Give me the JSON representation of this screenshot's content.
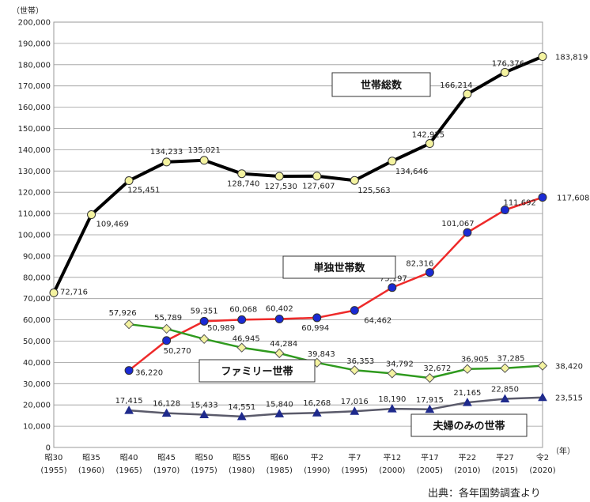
{
  "chart_data": {
    "type": "line",
    "y_unit_label": "（世帯）",
    "x_unit_label": "（年）",
    "ylim": [
      0,
      200000
    ],
    "ytick_step": 10000,
    "grid": true,
    "categories": [
      {
        "era": "昭30",
        "year": "(1955)"
      },
      {
        "era": "昭35",
        "year": "(1960)"
      },
      {
        "era": "昭40",
        "year": "(1965)"
      },
      {
        "era": "昭45",
        "year": "(1970)"
      },
      {
        "era": "昭50",
        "year": "(1975)"
      },
      {
        "era": "昭55",
        "year": "(1980)"
      },
      {
        "era": "昭60",
        "year": "(1985)"
      },
      {
        "era": "平2",
        "year": "(1990)"
      },
      {
        "era": "平7",
        "year": "(1995)"
      },
      {
        "era": "平12",
        "year": "(2000)"
      },
      {
        "era": "平17",
        "year": "(2005)"
      },
      {
        "era": "平22",
        "year": "(2010)"
      },
      {
        "era": "平27",
        "year": "(2015)"
      },
      {
        "era": "令2",
        "year": "(2020)"
      }
    ],
    "series": [
      {
        "name": "世帯総数",
        "line_color": "#000000",
        "marker_color": "#f4f3a0",
        "marker": "circle",
        "values": [
          72716,
          109469,
          125451,
          134233,
          135021,
          128740,
          127530,
          127607,
          125563,
          134646,
          142925,
          166214,
          176376,
          183819
        ]
      },
      {
        "name": "単独世帯数",
        "line_color": "#ee2a2a",
        "marker_color": "#1a2ad4",
        "marker": "circle",
        "values": [
          null,
          null,
          36220,
          50270,
          59351,
          60068,
          60402,
          60994,
          64462,
          75197,
          82316,
          101067,
          111692,
          117608
        ]
      },
      {
        "name": "ファミリー世帯",
        "line_color": "#2f9a1e",
        "marker_color": "#f4f3a0",
        "marker": "diamond",
        "values": [
          null,
          null,
          57926,
          55789,
          50989,
          46945,
          44284,
          39843,
          36353,
          34792,
          32672,
          36905,
          37285,
          38420
        ]
      },
      {
        "name": "夫婦のみの世帯",
        "line_color": "#5a5a6a",
        "marker_color": "#1f2a8c",
        "marker": "triangle",
        "values": [
          null,
          null,
          17415,
          16128,
          15433,
          14551,
          15840,
          16268,
          17016,
          18190,
          17915,
          21165,
          22850,
          23515
        ]
      }
    ]
  },
  "source_note": "出典：各年国勢調査より"
}
